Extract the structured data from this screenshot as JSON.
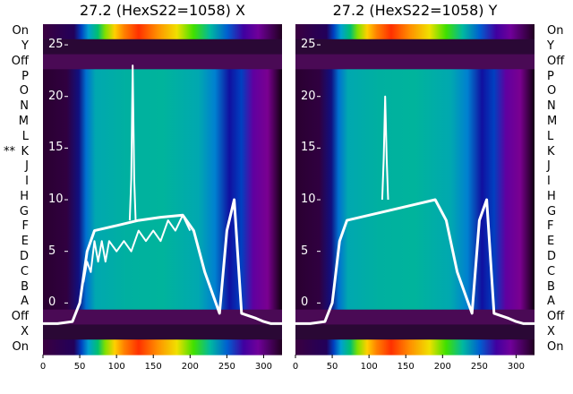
{
  "chart_data": [
    {
      "type": "heatmap",
      "title": "27.2 (HexS22=1058) X",
      "row_labels": [
        "On",
        "Y",
        "Off",
        "P",
        "O",
        "N",
        "M",
        "L",
        "K",
        "J",
        "I",
        "H",
        "G",
        "F",
        "E",
        "D",
        "C",
        "B",
        "A",
        "Off",
        "X",
        "On"
      ],
      "marked_row": "K",
      "marker_text": "**",
      "xlim": [
        0,
        325
      ],
      "xticks": [
        0,
        50,
        100,
        150,
        200,
        250,
        300
      ],
      "ylim": [
        -5,
        27
      ],
      "yticks": [
        0,
        5,
        10,
        15,
        20,
        25
      ],
      "colormap": "nipy_spectral",
      "series": [
        {
          "values_x": [
            0,
            20,
            40,
            50,
            60,
            70,
            100,
            130,
            160,
            190,
            205,
            220,
            240,
            250,
            260,
            270,
            290,
            300,
            310,
            325
          ],
          "values_y": [
            -2,
            -2,
            -1.8,
            0,
            5,
            7,
            7.5,
            8,
            8.3,
            8.5,
            7,
            3,
            -1,
            7,
            10,
            -1,
            -1.5,
            -1.8,
            -2,
            -2
          ]
        },
        {
          "values_x": [
            55,
            60,
            65,
            70,
            75,
            80,
            85,
            90,
            100,
            110,
            120,
            130,
            140,
            150,
            160,
            170,
            180,
            190,
            200
          ],
          "values_y": [
            2,
            4,
            3,
            6,
            4,
            6,
            4,
            6,
            5,
            6,
            5,
            7,
            6,
            7,
            6,
            8,
            7,
            8.5,
            7
          ]
        },
        {
          "values_x": [
            118,
            120,
            122,
            124,
            126
          ],
          "values_y": [
            8,
            12,
            23,
            12,
            8
          ]
        }
      ]
    },
    {
      "type": "heatmap",
      "title": "27.2 (HexS22=1058) Y",
      "row_labels": [
        "On",
        "Y",
        "Off",
        "P",
        "O",
        "N",
        "M",
        "L",
        "K",
        "J",
        "I",
        "H",
        "G",
        "F",
        "E",
        "D",
        "C",
        "B",
        "A",
        "Off",
        "X",
        "On"
      ],
      "xlim": [
        0,
        325
      ],
      "xticks": [
        0,
        50,
        100,
        150,
        200,
        250,
        300
      ],
      "ylim": [
        -5,
        27
      ],
      "yticks": [
        0,
        5,
        10,
        15,
        20,
        25
      ],
      "colormap": "nipy_spectral",
      "series": [
        {
          "values_x": [
            0,
            20,
            40,
            50,
            60,
            70,
            100,
            130,
            160,
            190,
            205,
            220,
            240,
            250,
            260,
            270,
            290,
            300,
            310,
            325
          ],
          "values_y": [
            -2,
            -2,
            -1.8,
            0,
            6,
            8,
            8.5,
            9,
            9.5,
            10,
            8,
            3,
            -1,
            8,
            10,
            -1,
            -1.5,
            -1.8,
            -2,
            -2
          ]
        },
        {
          "values_x": [
            118,
            120,
            122,
            124,
            126
          ],
          "values_y": [
            10,
            14,
            20,
            14,
            10
          ]
        }
      ]
    }
  ]
}
